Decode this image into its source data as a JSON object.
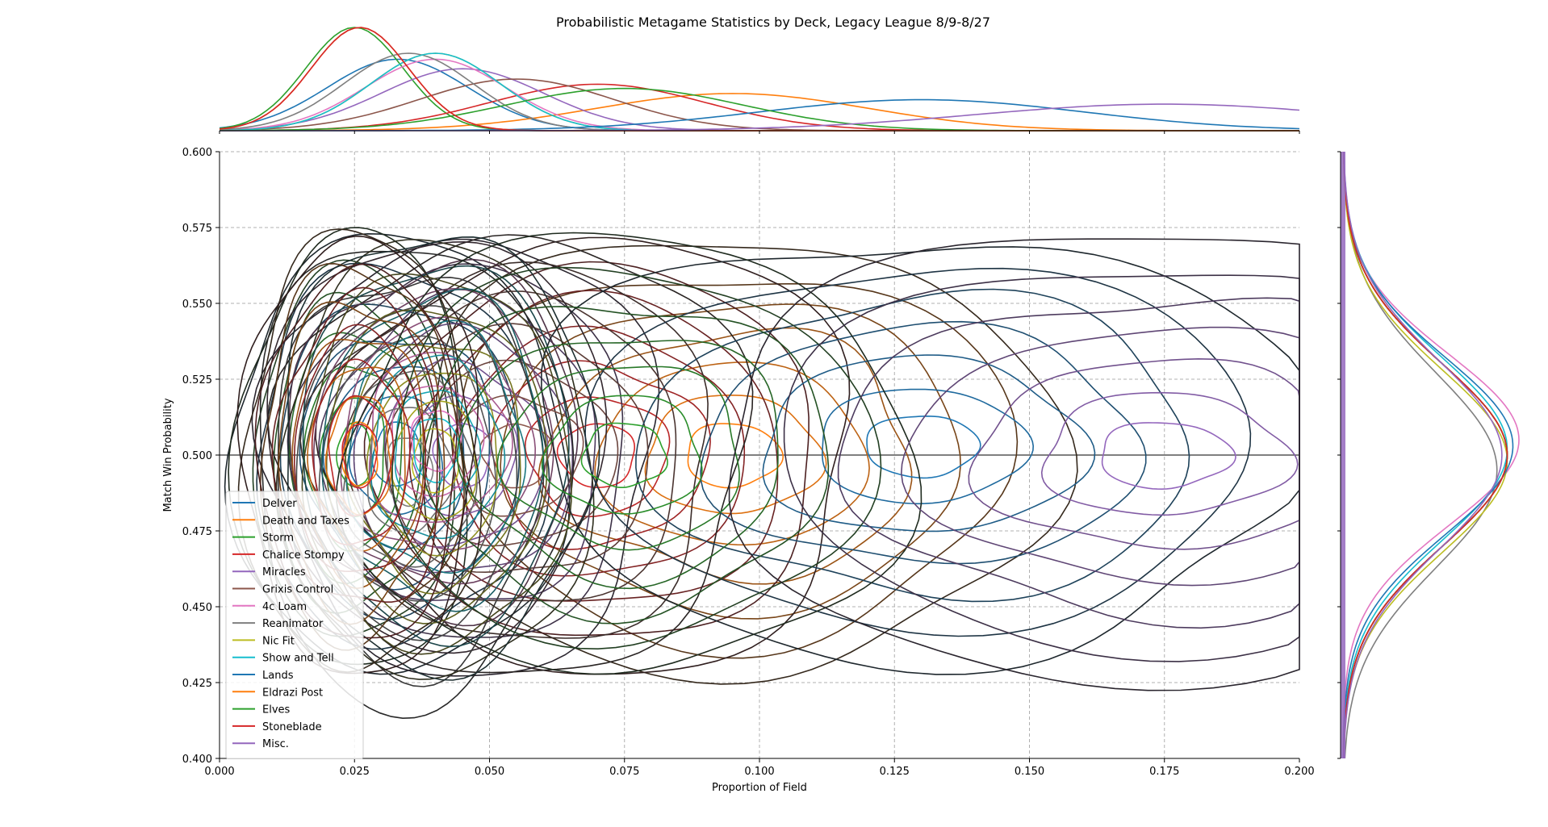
{
  "chart_data": {
    "type": "contour",
    "title": "Probabilistic Metagame Statistics by Deck, Legacy League 8/9-8/27",
    "xlabel": "Proportion of Field",
    "ylabel": "Match Win Probability",
    "xlim": [
      0.0,
      0.2
    ],
    "ylim": [
      0.4,
      0.6
    ],
    "x_ticks": [
      "0.000",
      "0.025",
      "0.050",
      "0.075",
      "0.100",
      "0.125",
      "0.150",
      "0.175",
      "0.200"
    ],
    "y_ticks": [
      "0.400",
      "0.425",
      "0.450",
      "0.475",
      "0.500",
      "0.525",
      "0.550",
      "0.575",
      "0.600"
    ],
    "grid": true,
    "legend_position": "lower-left",
    "reference_line_y": 0.5,
    "series": [
      {
        "name": "Delver",
        "color": "#1f77b4",
        "mean_x": 0.033,
        "sd_x": 0.013,
        "mean_y": 0.5,
        "sd_y": 0.03
      },
      {
        "name": "Death and Taxes",
        "color": "#ff7f0e",
        "mean_x": 0.095,
        "sd_x": 0.025,
        "mean_y": 0.5,
        "sd_y": 0.03
      },
      {
        "name": "Storm",
        "color": "#2ca02c",
        "mean_x": 0.025,
        "sd_x": 0.009,
        "mean_y": 0.5,
        "sd_y": 0.03
      },
      {
        "name": "Chalice Stompy",
        "color": "#d62728",
        "mean_x": 0.07,
        "sd_x": 0.02,
        "mean_y": 0.5,
        "sd_y": 0.03
      },
      {
        "name": "Miracles",
        "color": "#9467bd",
        "mean_x": 0.045,
        "sd_x": 0.015,
        "mean_y": 0.5,
        "sd_y": 0.03
      },
      {
        "name": "Grixis Control",
        "color": "#8c564b",
        "mean_x": 0.055,
        "sd_x": 0.018,
        "mean_y": 0.5,
        "sd_y": 0.03
      },
      {
        "name": "4c Loam",
        "color": "#e377c2",
        "mean_x": 0.04,
        "sd_x": 0.013,
        "mean_y": 0.505,
        "sd_y": 0.028
      },
      {
        "name": "Reanimator",
        "color": "#7f7f7f",
        "mean_x": 0.035,
        "sd_x": 0.012,
        "mean_y": 0.495,
        "sd_y": 0.032
      },
      {
        "name": "Nic Fit",
        "color": "#bcbd22",
        "mean_x": 0.04,
        "sd_x": 0.012,
        "mean_y": 0.498,
        "sd_y": 0.03
      },
      {
        "name": "Show and Tell",
        "color": "#17becf",
        "mean_x": 0.04,
        "sd_x": 0.012,
        "mean_y": 0.502,
        "sd_y": 0.03
      },
      {
        "name": "Lands",
        "color": "#1f77b4",
        "mean_x": 0.13,
        "sd_x": 0.03,
        "mean_y": 0.503,
        "sd_y": 0.029
      },
      {
        "name": "Eldrazi Post",
        "color": "#ff7f0e",
        "mean_x": 0.026,
        "sd_x": 0.009,
        "mean_y": 0.5,
        "sd_y": 0.03
      },
      {
        "name": "Elves",
        "color": "#2ca02c",
        "mean_x": 0.075,
        "sd_x": 0.022,
        "mean_y": 0.5,
        "sd_y": 0.03
      },
      {
        "name": "Stoneblade",
        "color": "#d62728",
        "mean_x": 0.026,
        "sd_x": 0.009,
        "mean_y": 0.5,
        "sd_y": 0.03
      },
      {
        "name": "Misc.",
        "color": "#9467bd",
        "mean_x": 0.175,
        "sd_x": 0.035,
        "mean_y": 0.5,
        "sd_y": 0.031
      }
    ]
  }
}
